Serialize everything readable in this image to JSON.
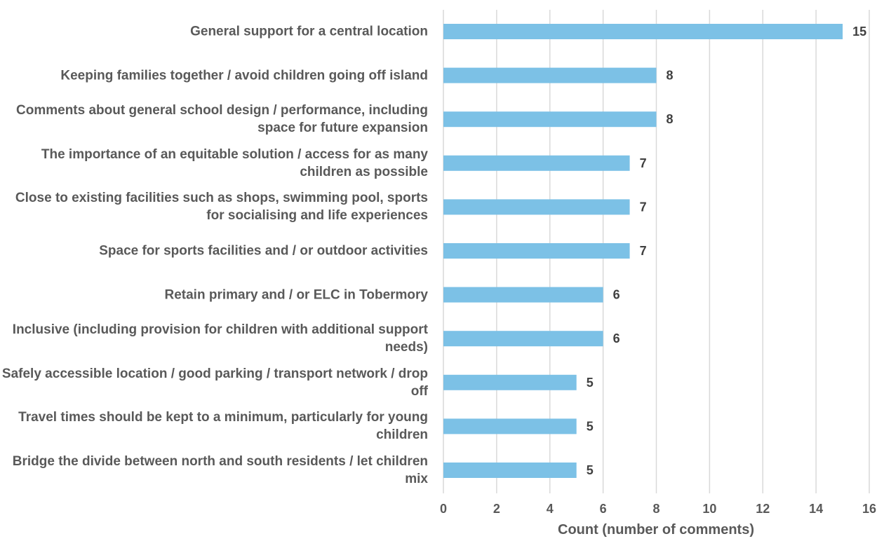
{
  "chart_data": {
    "type": "bar",
    "orientation": "horizontal",
    "categories": [
      "General support for a central location",
      "Keeping families together / avoid children going off island",
      "Comments about general school design / performance, including space for future expansion",
      "The importance of an equitable solution / access for as many children as possible",
      "Close to existing facilities such as shops, swimming pool, sports for socialising and life experiences",
      "Space for sports facilities and / or outdoor activities",
      "Retain primary and / or ELC in Tobermory",
      "Inclusive (including provision for children with additional support needs)",
      "Safely accessible location / good parking / transport network / drop off",
      "Travel times should be kept to a minimum, particularly for young children",
      "Bridge the divide between north and south residents / let children mix"
    ],
    "values": [
      15,
      8,
      8,
      7,
      7,
      7,
      6,
      6,
      5,
      5,
      5
    ],
    "xlabel": "Count (number of comments)",
    "xlim": [
      0,
      16
    ],
    "xticks": [
      0,
      2,
      4,
      6,
      8,
      10,
      12,
      14,
      16
    ],
    "data_labels": true,
    "grid": "vertical",
    "legend": "none",
    "colors": {
      "bar": "#7cc1e6",
      "grid": "#d9d9d9",
      "text": "#595959"
    }
  }
}
